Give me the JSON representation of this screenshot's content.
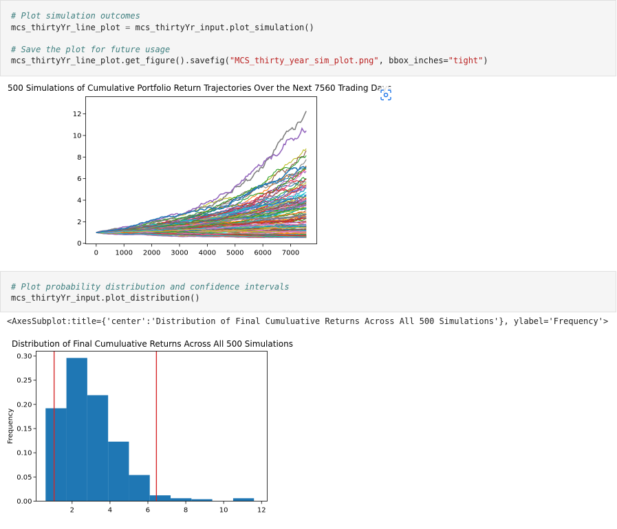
{
  "cells": {
    "cell1": {
      "comment1": "# Plot simulation outcomes",
      "code1_var": "mcs_thirtyYr_line_plot",
      "code1_op": " = ",
      "code1_rhs": "mcs_thirtyYr_input.plot_simulation",
      "code1_paren": "()",
      "comment2": "# Save the plot for future usage",
      "code2_pre": "mcs_thirtyYr_line_plot.get_figure().savefig(",
      "code2_str1": "\"MCS_thirty_year_sim_plot.png\"",
      "code2_mid": ", bbox_inches=",
      "code2_str2": "\"tight\"",
      "code2_end": ")"
    },
    "cell2": {
      "comment1": "# Plot probability distribution and confidence intervals",
      "code1_pre": "mcs_thirtyYr_input.plot_distribution",
      "code1_paren": "()"
    }
  },
  "output_text": "<AxesSubplot:title={'center':'Distribution of Final Cumuluative Returns Across All 500 Simulations'}, ylabel='Frequency'>",
  "icons": {
    "lens": "lens-scan-icon"
  },
  "chart_data": [
    {
      "type": "line",
      "title": "500 Simulations of Cumulative Portfolio Return Trajectories Over the Next 7560 Trading Days",
      "xlabel": "",
      "ylabel": "",
      "x_range": [
        0,
        7560
      ],
      "xlim": [
        -380,
        7940
      ],
      "ylim": [
        -0.05,
        13.6
      ],
      "x_ticks": [
        0,
        1000,
        2000,
        3000,
        4000,
        5000,
        6000,
        7000
      ],
      "y_ticks": [
        0,
        2,
        4,
        6,
        8,
        10,
        12
      ],
      "grid": false,
      "legend": "none",
      "series_count": 500,
      "series_colors": [
        "#1f77b4",
        "#ff7f0e",
        "#2ca02c",
        "#d62728",
        "#9467bd",
        "#8c564b",
        "#e377c2",
        "#7f7f7f",
        "#bcbd22",
        "#17becf"
      ],
      "notable_series": [
        {
          "color": "#7f7f7f",
          "final_value": 11.2,
          "peak": 12.8
        },
        {
          "color": "#9467bd",
          "final_value": 11.3
        },
        {
          "color": "#1f77b4",
          "final_value": 8.7
        }
      ]
    },
    {
      "type": "bar",
      "subtype": "histogram",
      "title": "Distribution of Final Cumuluative Returns Across All 500 Simulations",
      "xlabel": "",
      "ylabel": "Frequency",
      "xlim": [
        0.1,
        12.3
      ],
      "ylim": [
        0,
        0.31
      ],
      "x_ticks": [
        2,
        4,
        6,
        8,
        10,
        12
      ],
      "y_ticks": [
        0.0,
        0.05,
        0.1,
        0.15,
        0.2,
        0.25,
        0.3
      ],
      "y_tick_labels": [
        "0.00",
        "0.05",
        "0.10",
        "0.15",
        "0.20",
        "0.25",
        "0.30"
      ],
      "bin_edges": [
        0.6,
        1.7,
        2.8,
        3.9,
        5.0,
        6.1,
        7.2,
        8.3,
        9.4,
        10.5,
        11.6
      ],
      "values": [
        0.192,
        0.296,
        0.219,
        0.123,
        0.054,
        0.012,
        0.006,
        0.004,
        0.0,
        0.006
      ],
      "bar_color": "#1f77b4",
      "confidence_interval": [
        1.05,
        6.45
      ],
      "ci_color": "#d62728",
      "grid": false
    }
  ]
}
